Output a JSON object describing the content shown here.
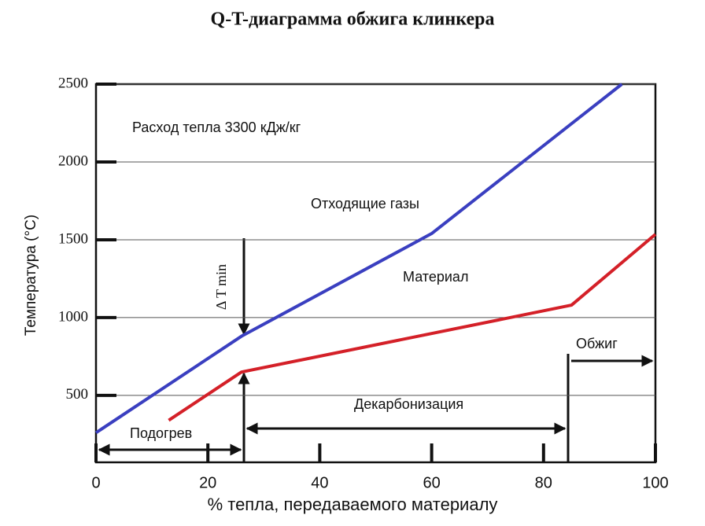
{
  "chart_data": {
    "type": "line",
    "title": "Q-T-диаграмма обжига клинкера",
    "x_label": "% тепла, передаваемого материалу",
    "y_label": "Температура  (°C)",
    "xlim": [
      0,
      100
    ],
    "xticks": [
      0,
      20,
      40,
      60,
      80,
      100
    ],
    "ylim": [
      70,
      2500
    ],
    "yticks": [
      500,
      1000,
      1500,
      2000,
      2500
    ],
    "grid": true,
    "series": [
      {
        "name": "Отходящие газы",
        "color": "#3a3fc0",
        "x": [
          0,
          26,
          60,
          94
        ],
        "values": [
          260,
          880,
          1540,
          2500
        ]
      },
      {
        "name": "Материал",
        "color": "#d42028",
        "x": [
          13,
          26,
          85,
          100
        ],
        "values": [
          340,
          650,
          1080,
          1535
        ]
      }
    ],
    "annotations": [
      "Расход тепла 3300 кДж/кг",
      "Δ T min",
      "Подогрев",
      "Декарбонизация",
      "Обжиг"
    ]
  }
}
